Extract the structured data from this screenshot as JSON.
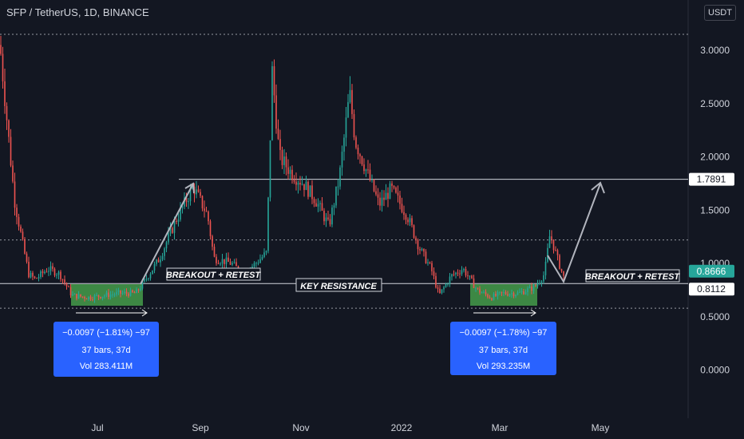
{
  "header": {
    "title": "SFP / TetherUS, 1D, BINANCE",
    "currency": "USDT"
  },
  "colors": {
    "background": "#131722",
    "up": "#26a69a",
    "down": "#ef5350",
    "grid": "#2a2e39"
  },
  "chart_data": {
    "type": "candlestick",
    "title": "SFP / TetherUS, 1D, BINANCE",
    "ylim": [
      -0.25,
      3.3
    ],
    "yticks": [
      "3.0000",
      "2.5000",
      "2.0000",
      "1.5000",
      "1.0000",
      "0.5000",
      "0.0000"
    ],
    "ytick_values": [
      3.0,
      2.5,
      2.0,
      1.5,
      1.0,
      0.5,
      0.0
    ],
    "xticks": [
      "Jul",
      "Sep",
      "Nov",
      "2022",
      "Mar",
      "May"
    ],
    "price_labels": [
      {
        "text": "1.7891",
        "value": 1.7891
      },
      {
        "text": "0.8666",
        "value": 0.8666
      },
      {
        "text": "0.8112",
        "value": 0.8112
      }
    ],
    "horizontal_levels": [
      3.15,
      1.7891,
      1.22,
      0.8112,
      0.58
    ],
    "annotations": [
      "BREAKOUT + RETEST",
      "KEY RESISTANCE",
      "BREAKOUT + RETEST"
    ],
    "measurements": [
      {
        "line1": "−0.0097 (−1.81%) −97",
        "line2": "37 bars, 37d",
        "line3": "Vol 283.411M"
      },
      {
        "line1": "−0.0097 (−1.78%) −97",
        "line2": "37 bars, 37d",
        "line3": "Vol 293.235M"
      }
    ],
    "price_path": [
      [
        0,
        3.05
      ],
      [
        8,
        2.4
      ],
      [
        18,
        1.6
      ],
      [
        28,
        1.2
      ],
      [
        36,
        0.9
      ],
      [
        44,
        0.85
      ],
      [
        60,
        0.95
      ],
      [
        75,
        0.9
      ],
      [
        90,
        0.7
      ],
      [
        110,
        0.68
      ],
      [
        130,
        0.7
      ],
      [
        150,
        0.72
      ],
      [
        170,
        0.72
      ],
      [
        180,
        0.82
      ],
      [
        200,
        1.05
      ],
      [
        220,
        1.4
      ],
      [
        242,
        1.72
      ],
      [
        260,
        1.45
      ],
      [
        268,
        1.05
      ],
      [
        290,
        1.0
      ],
      [
        305,
        0.9
      ],
      [
        320,
        1.0
      ],
      [
        334,
        1.1
      ],
      [
        341,
        2.8
      ],
      [
        350,
        2.0
      ],
      [
        365,
        1.85
      ],
      [
        380,
        1.75
      ],
      [
        395,
        1.6
      ],
      [
        412,
        1.35
      ],
      [
        425,
        1.8
      ],
      [
        438,
        2.6
      ],
      [
        445,
        2.15
      ],
      [
        460,
        1.85
      ],
      [
        475,
        1.55
      ],
      [
        490,
        1.7
      ],
      [
        510,
        1.45
      ],
      [
        525,
        1.15
      ],
      [
        540,
        0.95
      ],
      [
        550,
        0.7
      ],
      [
        565,
        0.88
      ],
      [
        580,
        0.95
      ],
      [
        598,
        0.75
      ],
      [
        615,
        0.68
      ],
      [
        630,
        0.72
      ],
      [
        650,
        0.72
      ],
      [
        670,
        0.78
      ],
      [
        682,
        0.9
      ],
      [
        689,
        1.28
      ],
      [
        698,
        1.05
      ],
      [
        706,
        0.87
      ]
    ]
  }
}
